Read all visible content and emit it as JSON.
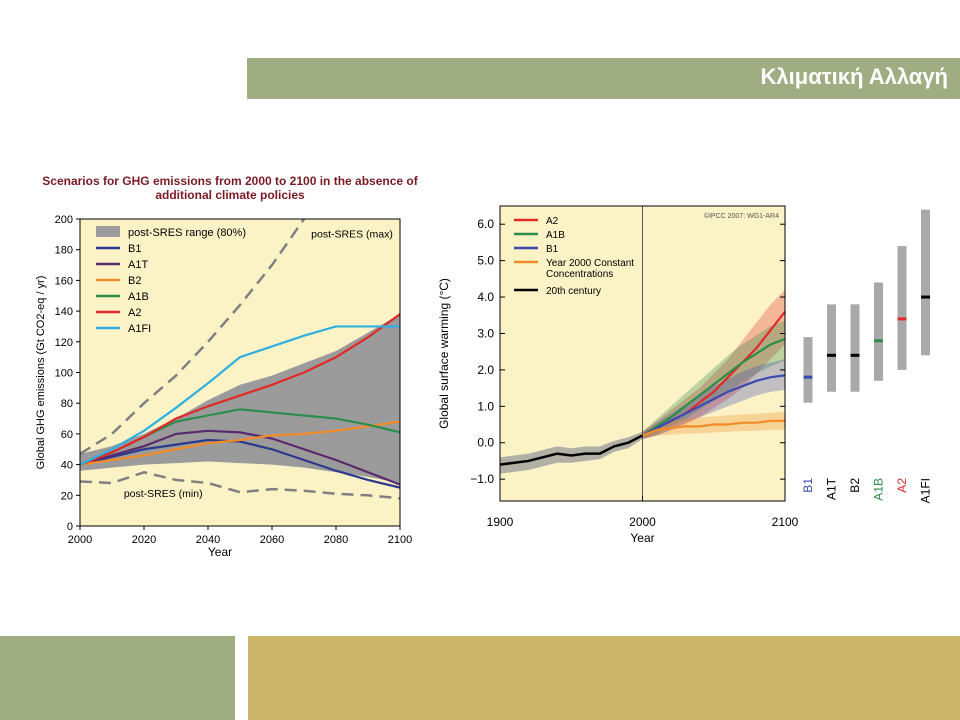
{
  "slide": {
    "title": "Κλιματική Αλλαγή"
  },
  "colors": {
    "title_bar": "#a0ad82",
    "footer_left": "#a0ad82",
    "footer_right": "#cbb56a",
    "plot_bg": "#fbf3c6"
  },
  "chart_data": [
    {
      "type": "line",
      "title": "Scenarios for GHG emissions from 2000 to 2100 in the absence of additional climate policies",
      "xlabel": "Year",
      "ylabel": "Global GHG emissions (Gt CO2-eq / yr)",
      "xlim": [
        2000,
        2100
      ],
      "ylim": [
        0,
        200
      ],
      "xticks": [
        2000,
        2020,
        2040,
        2060,
        2080,
        2100
      ],
      "yticks": [
        0,
        20,
        40,
        60,
        80,
        100,
        120,
        140,
        160,
        180,
        200
      ],
      "legend_position": "top-left",
      "band": {
        "name": "post-SRES range (80%)",
        "color": "#9b9b9b",
        "x": [
          2000,
          2010,
          2020,
          2030,
          2040,
          2050,
          2060,
          2070,
          2080,
          2090,
          2100
        ],
        "upper": [
          47,
          52,
          60,
          70,
          82,
          92,
          98,
          106,
          114,
          126,
          138
        ],
        "lower": [
          36,
          38,
          40,
          41,
          42,
          41,
          40,
          38,
          35,
          32,
          28
        ]
      },
      "series": [
        {
          "name": "B1",
          "color": "#2b3a8c",
          "x": [
            2000,
            2010,
            2020,
            2030,
            2040,
            2050,
            2060,
            2070,
            2080,
            2090,
            2100
          ],
          "values": [
            40,
            45,
            50,
            53,
            56,
            55,
            50,
            43,
            36,
            30,
            25
          ]
        },
        {
          "name": "A1T",
          "color": "#5a2a6e",
          "x": [
            2000,
            2010,
            2020,
            2030,
            2040,
            2050,
            2060,
            2070,
            2080,
            2090,
            2100
          ],
          "values": [
            40,
            46,
            52,
            60,
            62,
            61,
            57,
            50,
            43,
            35,
            27
          ]
        },
        {
          "name": "B2",
          "color": "#f28c28",
          "x": [
            2000,
            2010,
            2020,
            2030,
            2040,
            2050,
            2060,
            2070,
            2080,
            2090,
            2100
          ],
          "values": [
            40,
            43,
            46,
            50,
            54,
            56,
            59,
            60,
            62,
            65,
            68
          ]
        },
        {
          "name": "A1B",
          "color": "#2c8c4c",
          "x": [
            2000,
            2010,
            2020,
            2030,
            2040,
            2050,
            2060,
            2070,
            2080,
            2090,
            2100
          ],
          "values": [
            40,
            48,
            58,
            68,
            72,
            76,
            74,
            72,
            70,
            66,
            61
          ]
        },
        {
          "name": "A2",
          "color": "#e02a2a",
          "x": [
            2000,
            2010,
            2020,
            2030,
            2040,
            2050,
            2060,
            2070,
            2080,
            2090,
            2100
          ],
          "values": [
            40,
            48,
            58,
            70,
            78,
            85,
            92,
            100,
            110,
            123,
            138
          ]
        },
        {
          "name": "A1FI",
          "color": "#2fb0e0",
          "x": [
            2000,
            2010,
            2020,
            2030,
            2040,
            2050,
            2060,
            2070,
            2080,
            2090,
            2100
          ],
          "values": [
            40,
            50,
            62,
            77,
            93,
            110,
            117,
            124,
            130,
            130,
            130
          ]
        },
        {
          "name": "post-SRES (max)",
          "color": "#808080",
          "dashed": true,
          "x": [
            2000,
            2010,
            2020,
            2030,
            2040,
            2050,
            2060,
            2070
          ],
          "values": [
            47,
            60,
            80,
            98,
            120,
            144,
            170,
            200
          ]
        },
        {
          "name": "post-SRES (min)",
          "color": "#808080",
          "dashed": true,
          "x": [
            2000,
            2010,
            2020,
            2030,
            2040,
            2050,
            2060,
            2070,
            2080,
            2090,
            2100
          ],
          "values": [
            29,
            28,
            35,
            30,
            28,
            22,
            24,
            23,
            21,
            20,
            18
          ]
        }
      ],
      "annotations": [
        {
          "text": "post-SRES (max)",
          "x": 2085,
          "y": 188
        },
        {
          "text": "post-SRES (min)",
          "x": 2026,
          "y": 19
        }
      ]
    },
    {
      "type": "line",
      "xlabel": "Year",
      "ylabel": "Global surface warming (°C)",
      "xlim": [
        1900,
        2100
      ],
      "ylim": [
        -1.6,
        6.5
      ],
      "xticks": [
        1900,
        2000,
        2100
      ],
      "yticks": [
        "−1.0",
        "0.0",
        "1.0",
        "2.0",
        "3.0",
        "4.0",
        "5.0",
        "6.0"
      ],
      "ytick_values": [
        -1,
        0,
        1,
        2,
        3,
        4,
        5,
        6
      ],
      "annotation": "©IPCC 2007: WG1-AR4",
      "legend_position": "top-left",
      "series": [
        {
          "name": "A2",
          "color": "#e02a2a",
          "x": [
            2000,
            2010,
            2020,
            2030,
            2040,
            2050,
            2060,
            2070,
            2080,
            2090,
            2100
          ],
          "values": [
            0.2,
            0.4,
            0.6,
            0.8,
            1.1,
            1.4,
            1.8,
            2.2,
            2.6,
            3.1,
            3.6
          ],
          "upper": [
            0.3,
            0.6,
            0.9,
            1.2,
            1.5,
            1.9,
            2.3,
            2.8,
            3.3,
            3.8,
            4.2
          ],
          "lower": [
            0.1,
            0.2,
            0.35,
            0.5,
            0.7,
            0.95,
            1.2,
            1.5,
            1.9,
            2.3,
            2.7
          ]
        },
        {
          "name": "A1B",
          "color": "#2c8c4c",
          "x": [
            2000,
            2010,
            2020,
            2030,
            2040,
            2050,
            2060,
            2070,
            2080,
            2090,
            2100
          ],
          "values": [
            0.2,
            0.45,
            0.7,
            1.0,
            1.3,
            1.6,
            1.9,
            2.2,
            2.45,
            2.7,
            2.85
          ],
          "upper": [
            0.3,
            0.65,
            1.0,
            1.35,
            1.7,
            2.05,
            2.4,
            2.7,
            2.95,
            3.2,
            3.35
          ],
          "lower": [
            0.1,
            0.25,
            0.45,
            0.65,
            0.9,
            1.15,
            1.4,
            1.65,
            1.9,
            2.1,
            2.25
          ]
        },
        {
          "name": "B1",
          "color": "#3a4ab0",
          "x": [
            2000,
            2010,
            2020,
            2030,
            2040,
            2050,
            2060,
            2070,
            2080,
            2090,
            2100
          ],
          "values": [
            0.2,
            0.4,
            0.6,
            0.8,
            1.0,
            1.2,
            1.4,
            1.55,
            1.7,
            1.8,
            1.85
          ],
          "upper": [
            0.3,
            0.55,
            0.8,
            1.05,
            1.3,
            1.55,
            1.75,
            1.95,
            2.1,
            2.2,
            2.3
          ],
          "lower": [
            0.1,
            0.2,
            0.35,
            0.55,
            0.7,
            0.85,
            1.0,
            1.15,
            1.3,
            1.4,
            1.45
          ]
        },
        {
          "name": "Year 2000 Constant Concentrations",
          "color": "#f28c28",
          "x": [
            2000,
            2010,
            2020,
            2030,
            2040,
            2050,
            2060,
            2070,
            2080,
            2090,
            2100
          ],
          "values": [
            0.2,
            0.35,
            0.4,
            0.45,
            0.45,
            0.5,
            0.5,
            0.55,
            0.55,
            0.6,
            0.6
          ],
          "upper": [
            0.3,
            0.5,
            0.6,
            0.65,
            0.7,
            0.72,
            0.75,
            0.78,
            0.8,
            0.82,
            0.85
          ],
          "lower": [
            0.1,
            0.2,
            0.22,
            0.25,
            0.26,
            0.28,
            0.3,
            0.32,
            0.33,
            0.35,
            0.36
          ]
        },
        {
          "name": "20th century",
          "color": "#000000",
          "x": [
            1900,
            1910,
            1920,
            1930,
            1940,
            1950,
            1960,
            1970,
            1980,
            1990,
            2000
          ],
          "values": [
            -0.6,
            -0.55,
            -0.5,
            -0.4,
            -0.3,
            -0.35,
            -0.3,
            -0.3,
            -0.1,
            0.0,
            0.2
          ],
          "upper": [
            -0.4,
            -0.35,
            -0.3,
            -0.2,
            -0.1,
            -0.15,
            -0.1,
            -0.1,
            0.05,
            0.15,
            0.3
          ],
          "lower": [
            -0.85,
            -0.8,
            -0.75,
            -0.65,
            -0.55,
            -0.55,
            -0.5,
            -0.45,
            -0.25,
            -0.15,
            0.1
          ]
        }
      ],
      "range_bars": [
        {
          "name": "B1",
          "color": "#3a4ab0",
          "low": 1.1,
          "high": 2.9,
          "best": 1.8
        },
        {
          "name": "A1T",
          "color": "#000000",
          "low": 1.4,
          "high": 3.8,
          "best": 2.4
        },
        {
          "name": "B2",
          "color": "#000000",
          "low": 1.4,
          "high": 3.8,
          "best": 2.4
        },
        {
          "name": "A1B",
          "color": "#2c8c4c",
          "low": 1.7,
          "high": 4.4,
          "best": 2.8
        },
        {
          "name": "A2",
          "color": "#e02a2a",
          "low": 2.0,
          "high": 5.4,
          "best": 3.4
        },
        {
          "name": "A1FI",
          "color": "#000000",
          "low": 2.4,
          "high": 6.4,
          "best": 4.0
        }
      ]
    }
  ]
}
